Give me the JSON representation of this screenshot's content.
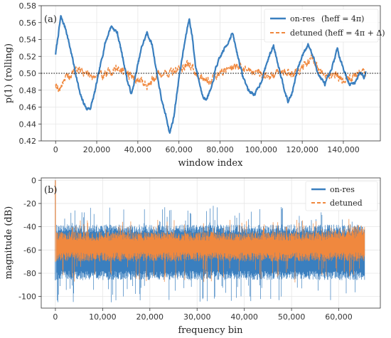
{
  "chart_data": [
    {
      "type": "line",
      "panel_label": "(a)",
      "xlabel": "window index",
      "ylabel": "p(1) (rolling)",
      "xlim": [
        -7000,
        158000
      ],
      "ylim": [
        0.42,
        0.58
      ],
      "xticks": [
        {
          "value": 0,
          "label": "0"
        },
        {
          "value": 20000,
          "label": "20,000"
        },
        {
          "value": 40000,
          "label": "40,000"
        },
        {
          "value": 60000,
          "label": "60,000"
        },
        {
          "value": 80000,
          "label": "80,000"
        },
        {
          "value": 100000,
          "label": "100,000"
        },
        {
          "value": 120000,
          "label": "120,000"
        },
        {
          "value": 140000,
          "label": "140,000"
        }
      ],
      "yticks": [
        {
          "value": 0.42,
          "label": "0.42"
        },
        {
          "value": 0.44,
          "label": "0.44"
        },
        {
          "value": 0.46,
          "label": "0.46"
        },
        {
          "value": 0.48,
          "label": "0.48"
        },
        {
          "value": 0.5,
          "label": "0.50"
        },
        {
          "value": 0.52,
          "label": "0.52"
        },
        {
          "value": 0.54,
          "label": "0.54"
        },
        {
          "value": 0.56,
          "label": "0.56"
        },
        {
          "value": 0.58,
          "label": "0.58"
        }
      ],
      "grid": true,
      "legend_position": "upper right",
      "reference_line": {
        "y": 0.5,
        "style": "dotted",
        "color": "#000000"
      },
      "series": [
        {
          "name": "on-res",
          "legend_math": "(ħeff = 4π)",
          "color": "#3a7fbf",
          "style": "solid",
          "noise_amplitude": 0.0035,
          "x": [
            0,
            2500,
            5000,
            8000,
            12000,
            15000,
            17000,
            19000,
            21000,
            24000,
            27000,
            30000,
            33000,
            35000,
            37000,
            40000,
            42000,
            44500,
            47000,
            50000,
            52000,
            54000,
            55500,
            57500,
            60000,
            63000,
            65000,
            66500,
            68000,
            71000,
            73000,
            76000,
            78000,
            81000,
            84000,
            86000,
            88000,
            91000,
            94000,
            97000,
            100000,
            103000,
            106000,
            110000,
            113000,
            115000,
            118000,
            121000,
            123000,
            125500,
            128000,
            131000,
            134000,
            137000,
            140000,
            143000,
            146000,
            148000,
            150000,
            151000
          ],
          "y": [
            0.523,
            0.567,
            0.552,
            0.52,
            0.474,
            0.458,
            0.459,
            0.477,
            0.5,
            0.535,
            0.556,
            0.548,
            0.515,
            0.49,
            0.475,
            0.51,
            0.532,
            0.548,
            0.533,
            0.49,
            0.463,
            0.447,
            0.429,
            0.448,
            0.495,
            0.539,
            0.565,
            0.543,
            0.51,
            0.478,
            0.468,
            0.483,
            0.507,
            0.524,
            0.537,
            0.548,
            0.527,
            0.497,
            0.479,
            0.475,
            0.49,
            0.514,
            0.533,
            0.494,
            0.466,
            0.476,
            0.507,
            0.527,
            0.534,
            0.518,
            0.498,
            0.487,
            0.502,
            0.529,
            0.506,
            0.486,
            0.49,
            0.502,
            0.495,
            0.502
          ]
        },
        {
          "name": "detuned",
          "legend_math": "(ħeff = 4π + Δ)",
          "color": "#f0883e",
          "style": "dashed",
          "noise_amplitude": 0.009,
          "x": [
            0,
            2000,
            4000,
            7000,
            10000,
            15000,
            20000,
            25000,
            30000,
            35000,
            40000,
            45000,
            50000,
            55000,
            60000,
            65000,
            70000,
            75000,
            80000,
            85000,
            90000,
            95000,
            100000,
            105000,
            110000,
            115000,
            120000,
            125000,
            128000,
            131000,
            135000,
            140000,
            145000,
            148000,
            151000
          ],
          "y": [
            0.489,
            0.48,
            0.494,
            0.496,
            0.505,
            0.5,
            0.496,
            0.5,
            0.506,
            0.5,
            0.492,
            0.486,
            0.5,
            0.5,
            0.505,
            0.51,
            0.497,
            0.492,
            0.5,
            0.508,
            0.507,
            0.503,
            0.5,
            0.496,
            0.503,
            0.5,
            0.506,
            0.517,
            0.505,
            0.495,
            0.5,
            0.493,
            0.496,
            0.502,
            0.5
          ]
        }
      ]
    },
    {
      "type": "line",
      "panel_label": "(b)",
      "xlabel": "frequency bin",
      "ylabel": "magnitude (dB)",
      "xlim": [
        -3000,
        68800
      ],
      "ylim": [
        -110,
        2
      ],
      "xticks": [
        {
          "value": 0,
          "label": "0"
        },
        {
          "value": 10000,
          "label": "10,000"
        },
        {
          "value": 20000,
          "label": "20,000"
        },
        {
          "value": 30000,
          "label": "30,000"
        },
        {
          "value": 40000,
          "label": "40,000"
        },
        {
          "value": 50000,
          "label": "50,000"
        },
        {
          "value": 60000,
          "label": "60,000"
        }
      ],
      "yticks": [
        {
          "value": 0,
          "label": "0"
        },
        {
          "value": -20,
          "label": "-20"
        },
        {
          "value": -40,
          "label": "-40"
        },
        {
          "value": -60,
          "label": "-60"
        },
        {
          "value": -80,
          "label": "-80"
        },
        {
          "value": -100,
          "label": "-100"
        }
      ],
      "grid": true,
      "legend_position": "upper right",
      "x_end": 65500,
      "peak_at_zero_db": 0,
      "series": [
        {
          "name": "on-res",
          "color": "#3a7fbf",
          "style": "solid",
          "band_db": [
            -86,
            -38
          ],
          "spike_top_db": [
            -37,
            -22
          ],
          "spike_bottom_db": [
            -90,
            -105
          ]
        },
        {
          "name": "detuned",
          "color": "#f0883e",
          "style": "dashed",
          "band_db": [
            -70,
            -44
          ],
          "spike_top_db": [
            -42,
            -34
          ],
          "spike_bottom_db": [
            -74,
            -88
          ]
        }
      ]
    }
  ]
}
